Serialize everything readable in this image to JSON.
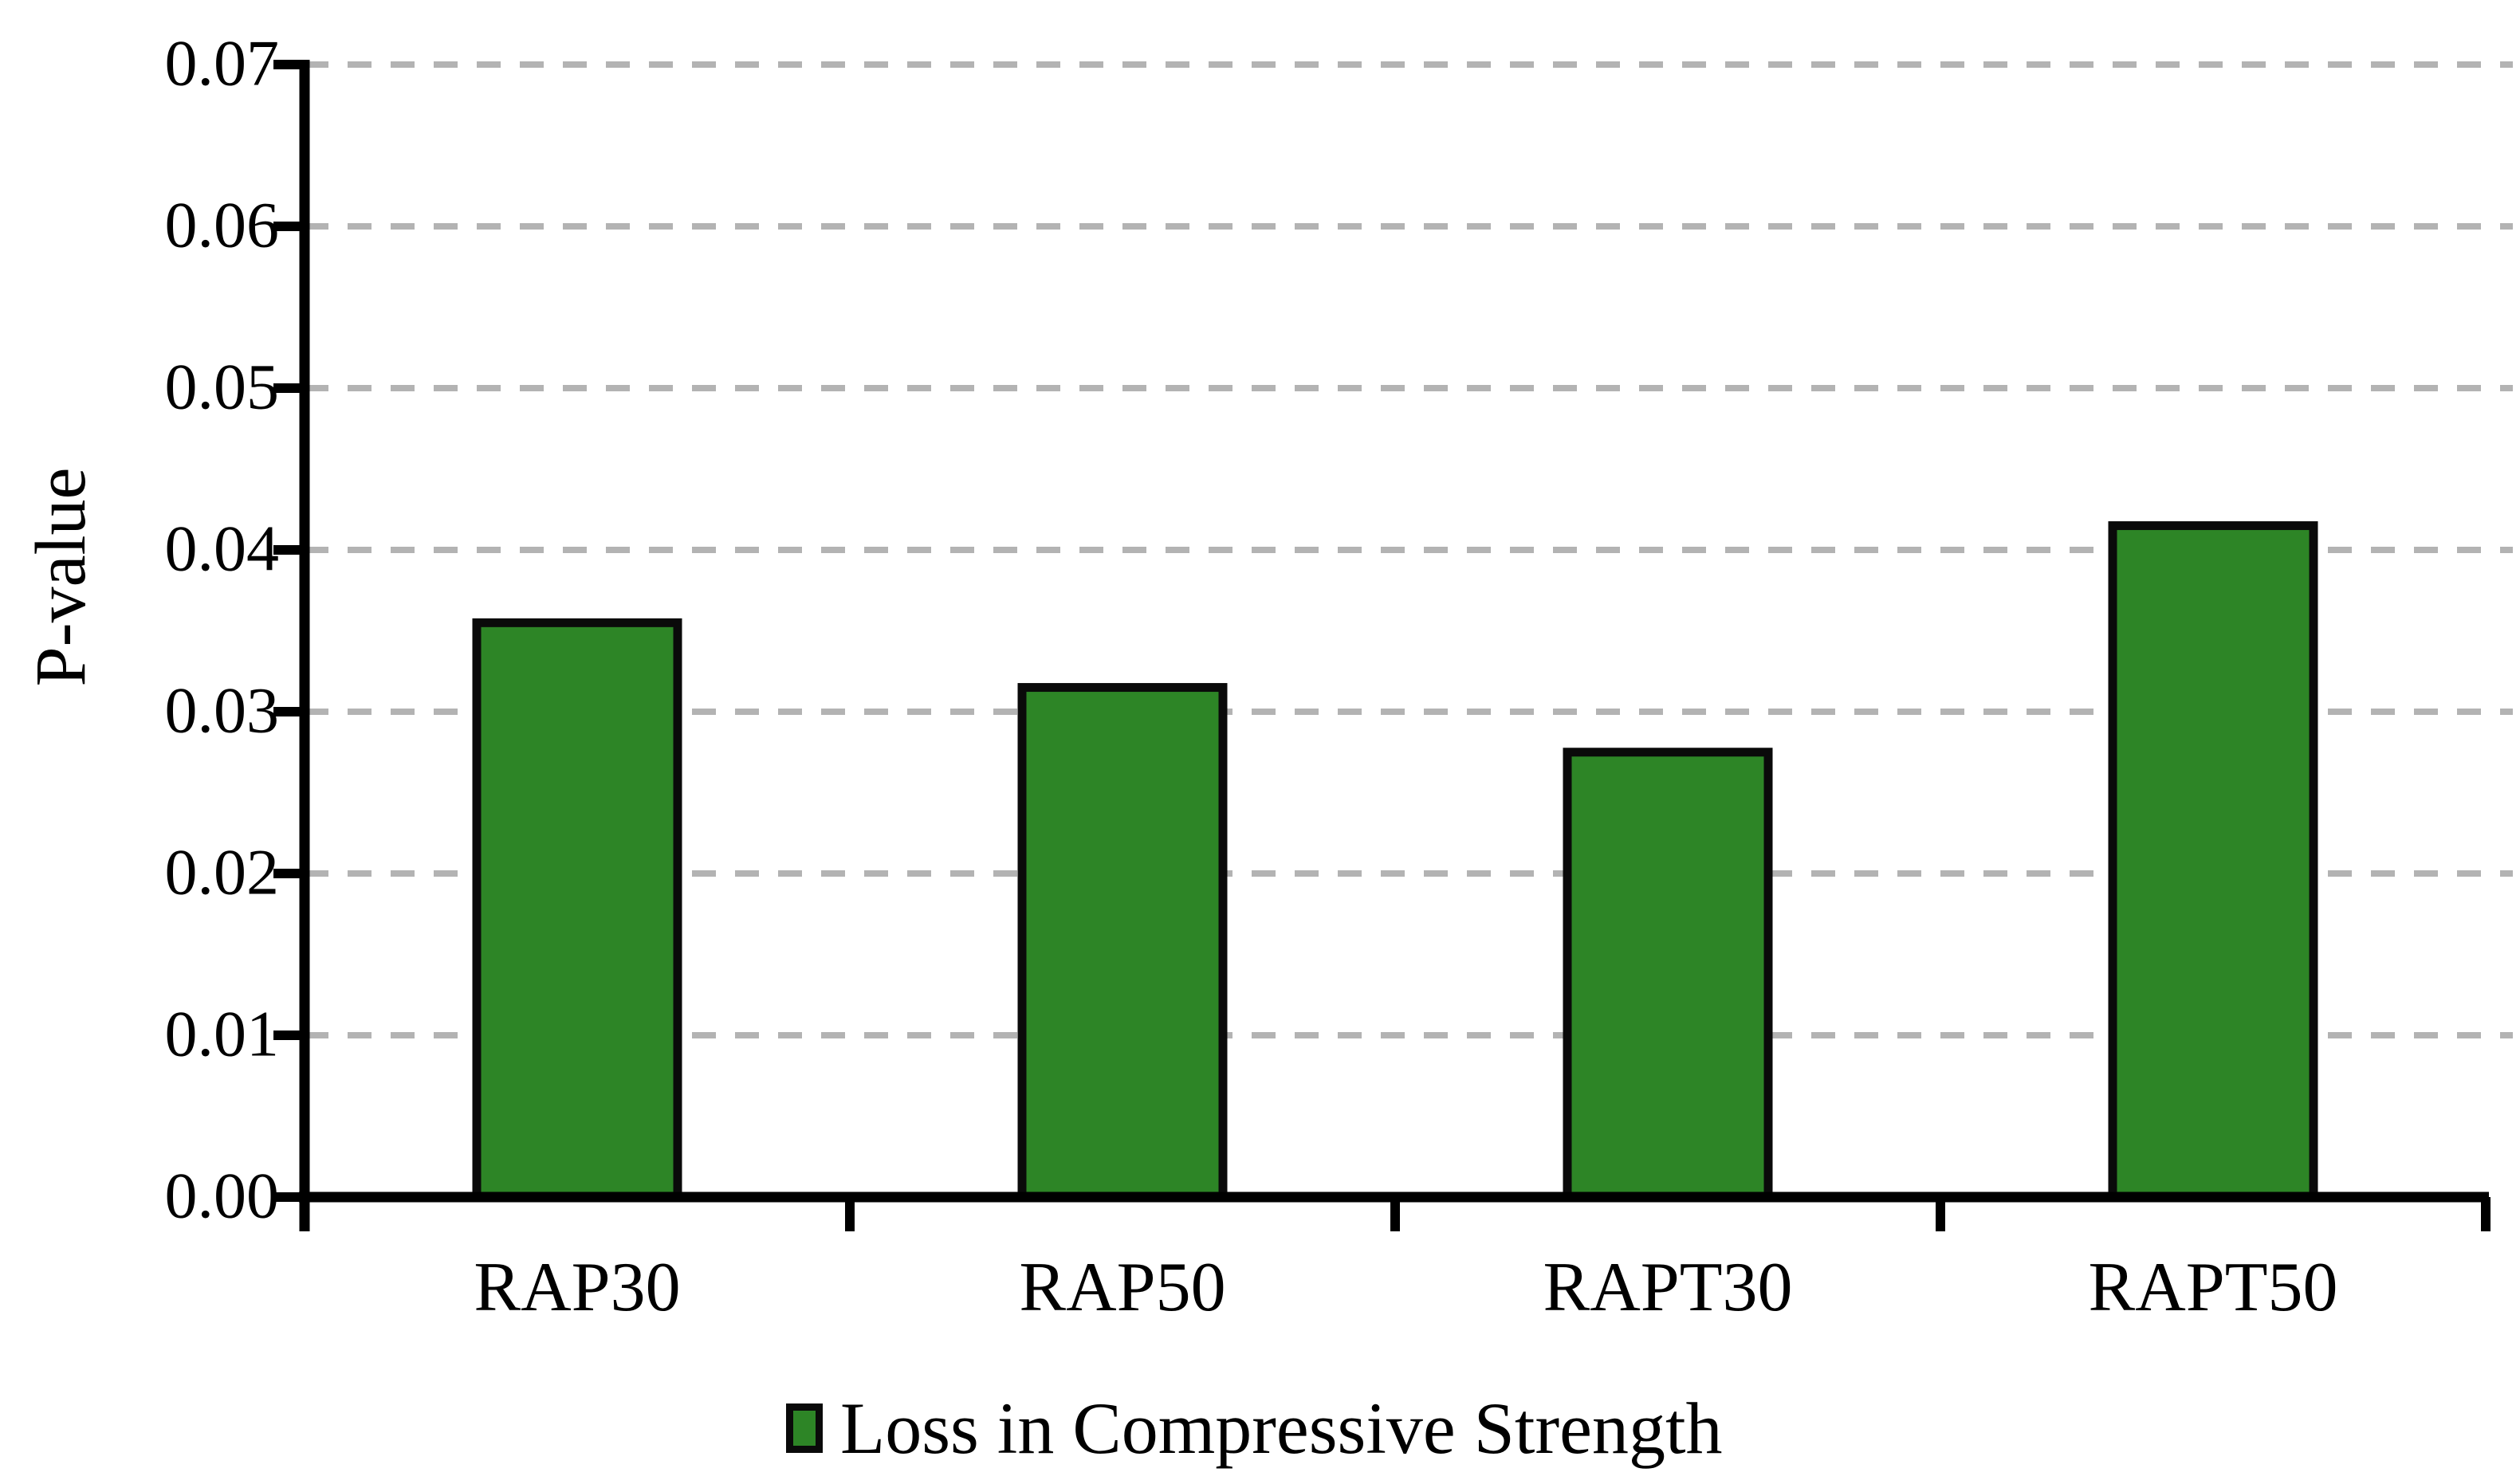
{
  "chart_data": {
    "type": "bar",
    "title": "",
    "categories": [
      "RAP30",
      "RAP50",
      "RAPT30",
      "RAPT50"
    ],
    "series": [
      {
        "name": "Loss in Compressive Strength",
        "values": [
          0.0355,
          0.0315,
          0.0275,
          0.0415
        ]
      }
    ],
    "xlabel": "",
    "ylabel": "P-value",
    "ylim": [
      0,
      0.07
    ],
    "ytick_step": 0.01,
    "ytick_labels": [
      "0.00",
      "0.01",
      "0.02",
      "0.03",
      "0.04",
      "0.05",
      "0.06",
      "0.07"
    ],
    "grid": "horizontal-dashed",
    "legend_position": "bottom-center",
    "colors": {
      "bar_fill": "#2d8526",
      "bar_border": "#0a0a0a",
      "axis": "#000000",
      "gridline": "#b3b3b3",
      "text": "#000000",
      "background": "#ffffff"
    }
  }
}
